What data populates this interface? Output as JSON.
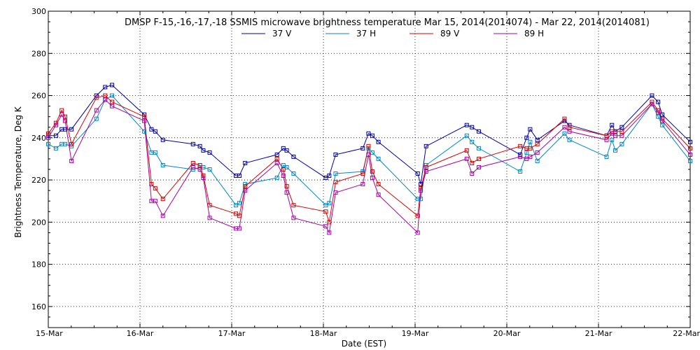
{
  "chart_data": {
    "type": "line",
    "title": "DMSP F-15,-16,-17,-18 SSMIS microwave brightness temperature Mar 15, 2014(2014074) - Mar 22, 2014(2014081)",
    "xlabel": "Date (EST)",
    "ylabel": "Brightness Temperature, Deg K",
    "xlim": [
      "2014-03-15T00:00",
      "2014-03-22T00:00"
    ],
    "ylim": [
      150,
      300
    ],
    "x_ticks": [
      {
        "value": "2014-03-15T00:00",
        "label": "15-Mar"
      },
      {
        "value": "2014-03-16T00:00",
        "label": "16-Mar"
      },
      {
        "value": "2014-03-17T00:00",
        "label": "17-Mar"
      },
      {
        "value": "2014-03-18T00:00",
        "label": "18-Mar"
      },
      {
        "value": "2014-03-19T00:00",
        "label": "19-Mar"
      },
      {
        "value": "2014-03-20T00:00",
        "label": "20-Mar"
      },
      {
        "value": "2014-03-21T00:00",
        "label": "21-Mar"
      },
      {
        "value": "2014-03-22T00:00",
        "label": "22-Mar"
      }
    ],
    "y_ticks": [
      160,
      180,
      200,
      220,
      240,
      260,
      280,
      300
    ],
    "grid": true,
    "legend_position": "top-center",
    "series": [
      {
        "name": "37 V",
        "color": "#0000aa",
        "points": [
          [
            "2014-03-15T00:00",
            241
          ],
          [
            "2014-03-15T02:00",
            241
          ],
          [
            "2014-03-15T03:31",
            244
          ],
          [
            "2014-03-15T04:24",
            244
          ],
          [
            "2014-03-15T06:04",
            244
          ],
          [
            "2014-03-15T12:36",
            260
          ],
          [
            "2014-03-15T14:53",
            264
          ],
          [
            "2014-03-15T16:41",
            265
          ],
          [
            "2014-03-16T01:07",
            251
          ],
          [
            "2014-03-16T03:00",
            244
          ],
          [
            "2014-03-16T04:00",
            243
          ],
          [
            "2014-03-16T06:00",
            239
          ],
          [
            "2014-03-16T13:53",
            237
          ],
          [
            "2014-03-16T15:41",
            236
          ],
          [
            "2014-03-16T16:34",
            234
          ],
          [
            "2014-03-16T18:14",
            233
          ],
          [
            "2014-03-17T01:07",
            222
          ],
          [
            "2014-03-17T02:00",
            222
          ],
          [
            "2014-03-17T03:31",
            228
          ],
          [
            "2014-03-17T11:51",
            232
          ],
          [
            "2014-03-17T13:31",
            235
          ],
          [
            "2014-03-17T14:24",
            234
          ],
          [
            "2014-03-17T16:12",
            231
          ],
          [
            "2014-03-18T00:38",
            221
          ],
          [
            "2014-03-18T01:31",
            222
          ],
          [
            "2014-03-18T03:12",
            232
          ],
          [
            "2014-03-18T10:19",
            235
          ],
          [
            "2014-03-18T11:48",
            242
          ],
          [
            "2014-03-18T12:48",
            241
          ],
          [
            "2014-03-18T14:24",
            238
          ],
          [
            "2014-03-19T00:41",
            223
          ],
          [
            "2014-03-19T01:29",
            218
          ],
          [
            "2014-03-19T02:53",
            236
          ],
          [
            "2014-03-19T13:31",
            246
          ],
          [
            "2014-03-19T14:53",
            245
          ],
          [
            "2014-03-19T16:41",
            243
          ],
          [
            "2014-03-20T03:31",
            232
          ],
          [
            "2014-03-20T05:12",
            240
          ],
          [
            "2014-03-20T06:07",
            244
          ],
          [
            "2014-03-20T08:00",
            239
          ],
          [
            "2014-03-20T15:07",
            248
          ],
          [
            "2014-03-20T16:24",
            246
          ],
          [
            "2014-03-21T02:07",
            241
          ],
          [
            "2014-03-21T03:31",
            246
          ],
          [
            "2014-03-21T04:24",
            243
          ],
          [
            "2014-03-21T06:07",
            245
          ],
          [
            "2014-03-21T14:00",
            260
          ],
          [
            "2014-03-21T15:36",
            257
          ],
          [
            "2014-03-21T16:41",
            251
          ],
          [
            "2014-03-22T00:00",
            238
          ]
        ]
      },
      {
        "name": "37 H",
        "color": "#0088cc",
        "points": [
          [
            "2014-03-15T00:00",
            237
          ],
          [
            "2014-03-15T02:00",
            235
          ],
          [
            "2014-03-15T03:31",
            237
          ],
          [
            "2014-03-15T04:24",
            237
          ],
          [
            "2014-03-15T06:04",
            236
          ],
          [
            "2014-03-15T12:36",
            249
          ],
          [
            "2014-03-15T14:53",
            258
          ],
          [
            "2014-03-15T16:41",
            260
          ],
          [
            "2014-03-16T01:07",
            243
          ],
          [
            "2014-03-16T03:00",
            233
          ],
          [
            "2014-03-16T04:00",
            233
          ],
          [
            "2014-03-16T06:00",
            227
          ],
          [
            "2014-03-16T13:53",
            225
          ],
          [
            "2014-03-16T15:41",
            226
          ],
          [
            "2014-03-16T16:34",
            226
          ],
          [
            "2014-03-16T18:14",
            225
          ],
          [
            "2014-03-17T01:07",
            208
          ],
          [
            "2014-03-17T02:00",
            209
          ],
          [
            "2014-03-17T03:31",
            218
          ],
          [
            "2014-03-17T11:51",
            221
          ],
          [
            "2014-03-17T13:31",
            227
          ],
          [
            "2014-03-17T14:24",
            226
          ],
          [
            "2014-03-17T16:12",
            223
          ],
          [
            "2014-03-18T00:38",
            208
          ],
          [
            "2014-03-18T01:31",
            209
          ],
          [
            "2014-03-18T03:12",
            223
          ],
          [
            "2014-03-18T10:19",
            224
          ],
          [
            "2014-03-18T11:48",
            235
          ],
          [
            "2014-03-18T12:48",
            233
          ],
          [
            "2014-03-18T14:24",
            230
          ],
          [
            "2014-03-19T00:41",
            211
          ],
          [
            "2014-03-19T01:29",
            211
          ],
          [
            "2014-03-19T02:53",
            227
          ],
          [
            "2014-03-19T13:31",
            241
          ],
          [
            "2014-03-19T14:53",
            238
          ],
          [
            "2014-03-19T16:41",
            235
          ],
          [
            "2014-03-20T03:31",
            224
          ],
          [
            "2014-03-20T05:12",
            233
          ],
          [
            "2014-03-20T06:07",
            238
          ],
          [
            "2014-03-20T08:00",
            229
          ],
          [
            "2014-03-20T15:07",
            242
          ],
          [
            "2014-03-20T16:24",
            239
          ],
          [
            "2014-03-21T02:07",
            231
          ],
          [
            "2014-03-21T03:31",
            239
          ],
          [
            "2014-03-21T04:24",
            234
          ],
          [
            "2014-03-21T06:07",
            237
          ],
          [
            "2014-03-21T14:00",
            256
          ],
          [
            "2014-03-21T15:36",
            250
          ],
          [
            "2014-03-21T16:41",
            246
          ],
          [
            "2014-03-22T00:00",
            229
          ]
        ]
      },
      {
        "name": "89 V",
        "color": "#dd0000",
        "points": [
          [
            "2014-03-15T00:00",
            242
          ],
          [
            "2014-03-15T02:00",
            247
          ],
          [
            "2014-03-15T03:31",
            253
          ],
          [
            "2014-03-15T04:24",
            250
          ],
          [
            "2014-03-15T06:04",
            237
          ],
          [
            "2014-03-15T12:36",
            259
          ],
          [
            "2014-03-15T14:53",
            260
          ],
          [
            "2014-03-15T16:41",
            257
          ],
          [
            "2014-03-16T01:07",
            250
          ],
          [
            "2014-03-16T03:00",
            218
          ],
          [
            "2014-03-16T04:00",
            216
          ],
          [
            "2014-03-16T06:00",
            211
          ],
          [
            "2014-03-16T13:53",
            228
          ],
          [
            "2014-03-16T15:41",
            227
          ],
          [
            "2014-03-16T16:34",
            222
          ],
          [
            "2014-03-16T18:14",
            208
          ],
          [
            "2014-03-17T01:07",
            204
          ],
          [
            "2014-03-17T02:00",
            203
          ],
          [
            "2014-03-17T03:31",
            217
          ],
          [
            "2014-03-17T11:51",
            230
          ],
          [
            "2014-03-17T13:31",
            225
          ],
          [
            "2014-03-17T14:24",
            217
          ],
          [
            "2014-03-17T16:12",
            208
          ],
          [
            "2014-03-18T00:38",
            205
          ],
          [
            "2014-03-18T01:31",
            200
          ],
          [
            "2014-03-18T03:12",
            219
          ],
          [
            "2014-03-18T10:19",
            223
          ],
          [
            "2014-03-18T11:48",
            236
          ],
          [
            "2014-03-18T12:48",
            224
          ],
          [
            "2014-03-18T14:24",
            218
          ],
          [
            "2014-03-19T00:41",
            203
          ],
          [
            "2014-03-19T01:29",
            216
          ],
          [
            "2014-03-19T02:53",
            226
          ],
          [
            "2014-03-19T13:31",
            234
          ],
          [
            "2014-03-19T14:53",
            228
          ],
          [
            "2014-03-19T16:41",
            230
          ],
          [
            "2014-03-20T03:31",
            236
          ],
          [
            "2014-03-20T05:12",
            235
          ],
          [
            "2014-03-20T06:07",
            235
          ],
          [
            "2014-03-20T08:00",
            237
          ],
          [
            "2014-03-20T15:07",
            249
          ],
          [
            "2014-03-20T16:24",
            245
          ],
          [
            "2014-03-21T02:07",
            241
          ],
          [
            "2014-03-21T03:31",
            243
          ],
          [
            "2014-03-21T04:24",
            243
          ],
          [
            "2014-03-21T06:07",
            243
          ],
          [
            "2014-03-21T14:00",
            257
          ],
          [
            "2014-03-21T15:36",
            253
          ],
          [
            "2014-03-21T16:41",
            249
          ],
          [
            "2014-03-22T00:00",
            235
          ]
        ]
      },
      {
        "name": "89 H",
        "color": "#aa00aa",
        "points": [
          [
            "2014-03-15T00:00",
            240
          ],
          [
            "2014-03-15T02:00",
            246
          ],
          [
            "2014-03-15T03:31",
            251
          ],
          [
            "2014-03-15T04:24",
            248
          ],
          [
            "2014-03-15T06:04",
            229
          ],
          [
            "2014-03-15T12:36",
            253
          ],
          [
            "2014-03-15T14:53",
            258
          ],
          [
            "2014-03-15T16:41",
            255
          ],
          [
            "2014-03-16T01:07",
            248
          ],
          [
            "2014-03-16T03:00",
            210
          ],
          [
            "2014-03-16T04:00",
            210
          ],
          [
            "2014-03-16T06:00",
            203
          ],
          [
            "2014-03-16T13:53",
            226
          ],
          [
            "2014-03-16T15:41",
            225
          ],
          [
            "2014-03-16T16:34",
            221
          ],
          [
            "2014-03-16T18:14",
            202
          ],
          [
            "2014-03-17T01:07",
            197
          ],
          [
            "2014-03-17T02:00",
            197
          ],
          [
            "2014-03-17T03:31",
            215
          ],
          [
            "2014-03-17T11:51",
            228
          ],
          [
            "2014-03-17T13:31",
            222
          ],
          [
            "2014-03-17T14:24",
            214
          ],
          [
            "2014-03-17T16:12",
            202
          ],
          [
            "2014-03-18T00:38",
            198
          ],
          [
            "2014-03-18T01:31",
            195
          ],
          [
            "2014-03-18T03:12",
            214
          ],
          [
            "2014-03-18T10:19",
            218
          ],
          [
            "2014-03-18T11:48",
            232
          ],
          [
            "2014-03-18T12:48",
            221
          ],
          [
            "2014-03-18T14:24",
            213
          ],
          [
            "2014-03-19T00:41",
            195
          ],
          [
            "2014-03-19T01:29",
            215
          ],
          [
            "2014-03-19T02:53",
            224
          ],
          [
            "2014-03-19T13:31",
            230
          ],
          [
            "2014-03-19T14:53",
            223
          ],
          [
            "2014-03-19T16:41",
            226
          ],
          [
            "2014-03-20T03:31",
            231
          ],
          [
            "2014-03-20T05:12",
            230
          ],
          [
            "2014-03-20T06:07",
            231
          ],
          [
            "2014-03-20T08:00",
            233
          ],
          [
            "2014-03-20T15:07",
            245
          ],
          [
            "2014-03-20T16:24",
            243
          ],
          [
            "2014-03-21T02:07",
            239
          ],
          [
            "2014-03-21T03:31",
            242
          ],
          [
            "2014-03-21T04:24",
            241
          ],
          [
            "2014-03-21T06:07",
            241
          ],
          [
            "2014-03-21T14:00",
            256
          ],
          [
            "2014-03-21T15:36",
            252
          ],
          [
            "2014-03-21T16:41",
            248
          ],
          [
            "2014-03-22T00:00",
            232
          ]
        ]
      }
    ]
  }
}
